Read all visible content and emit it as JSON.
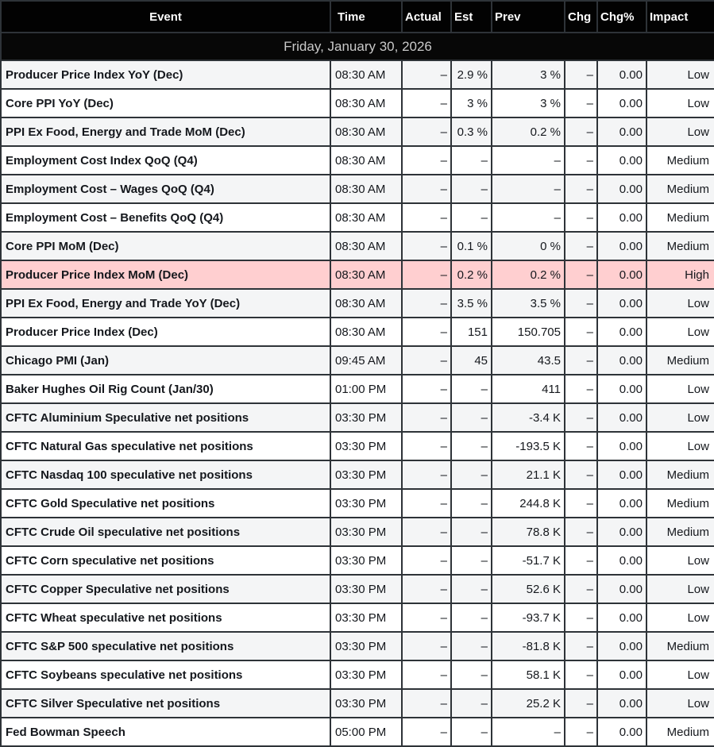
{
  "colors": {
    "header_bg": "#020202",
    "header_text": "#ffffff",
    "date_bg": "#070707",
    "date_text": "#c9c9c9",
    "row_white": "#ffffff",
    "row_stripe": "#f4f5f6",
    "row_highlight": "#ffcfd0",
    "border": "#2e3338",
    "text": "#15181d"
  },
  "table": {
    "columns": [
      "Event",
      "Time",
      "Actual",
      "Est",
      "Prev",
      "Chg",
      "Chg%",
      "Impact"
    ],
    "date_header": "Friday, January 30, 2026",
    "rows": [
      {
        "event": "Producer Price Index YoY (Dec)",
        "time": "08:30 AM",
        "actual": "–",
        "est": "2.9 %",
        "prev": "3 %",
        "chg": "–",
        "chg_pct": "0.00",
        "impact": "Low",
        "highlight": false
      },
      {
        "event": "Core PPI YoY (Dec)",
        "time": "08:30 AM",
        "actual": "–",
        "est": "3 %",
        "prev": "3 %",
        "chg": "–",
        "chg_pct": "0.00",
        "impact": "Low",
        "highlight": false
      },
      {
        "event": "PPI Ex Food, Energy and Trade MoM (Dec)",
        "time": "08:30 AM",
        "actual": "–",
        "est": "0.3 %",
        "prev": "0.2 %",
        "chg": "–",
        "chg_pct": "0.00",
        "impact": "Low",
        "highlight": false
      },
      {
        "event": "Employment Cost Index QoQ (Q4)",
        "time": "08:30 AM",
        "actual": "–",
        "est": "–",
        "prev": "–",
        "chg": "–",
        "chg_pct": "0.00",
        "impact": "Medium",
        "highlight": false
      },
      {
        "event": "Employment Cost – Wages QoQ (Q4)",
        "time": "08:30 AM",
        "actual": "–",
        "est": "–",
        "prev": "–",
        "chg": "–",
        "chg_pct": "0.00",
        "impact": "Medium",
        "highlight": false
      },
      {
        "event": "Employment Cost – Benefits QoQ (Q4)",
        "time": "08:30 AM",
        "actual": "–",
        "est": "–",
        "prev": "–",
        "chg": "–",
        "chg_pct": "0.00",
        "impact": "Medium",
        "highlight": false
      },
      {
        "event": "Core PPI MoM (Dec)",
        "time": "08:30 AM",
        "actual": "–",
        "est": "0.1 %",
        "prev": "0 %",
        "chg": "–",
        "chg_pct": "0.00",
        "impact": "Medium",
        "highlight": false
      },
      {
        "event": "Producer Price Index MoM (Dec)",
        "time": "08:30 AM",
        "actual": "–",
        "est": "0.2 %",
        "prev": "0.2 %",
        "chg": "–",
        "chg_pct": "0.00",
        "impact": "High",
        "highlight": true
      },
      {
        "event": "PPI Ex Food, Energy and Trade YoY (Dec)",
        "time": "08:30 AM",
        "actual": "–",
        "est": "3.5 %",
        "prev": "3.5 %",
        "chg": "–",
        "chg_pct": "0.00",
        "impact": "Low",
        "highlight": false
      },
      {
        "event": "Producer Price Index (Dec)",
        "time": "08:30 AM",
        "actual": "–",
        "est": "151",
        "prev": "150.705",
        "chg": "–",
        "chg_pct": "0.00",
        "impact": "Low",
        "highlight": false
      },
      {
        "event": "Chicago PMI (Jan)",
        "time": "09:45 AM",
        "actual": "–",
        "est": "45",
        "prev": "43.5",
        "chg": "–",
        "chg_pct": "0.00",
        "impact": "Medium",
        "highlight": false
      },
      {
        "event": "Baker Hughes Oil Rig Count (Jan/30)",
        "time": "01:00 PM",
        "actual": "–",
        "est": "–",
        "prev": "411",
        "chg": "–",
        "chg_pct": "0.00",
        "impact": "Low",
        "highlight": false
      },
      {
        "event": "CFTC Aluminium Speculative net positions",
        "time": "03:30 PM",
        "actual": "–",
        "est": "–",
        "prev": "-3.4 K",
        "chg": "–",
        "chg_pct": "0.00",
        "impact": "Low",
        "highlight": false
      },
      {
        "event": "CFTC Natural Gas speculative net positions",
        "time": "03:30 PM",
        "actual": "–",
        "est": "–",
        "prev": "-193.5 K",
        "chg": "–",
        "chg_pct": "0.00",
        "impact": "Low",
        "highlight": false
      },
      {
        "event": "CFTC Nasdaq 100 speculative net positions",
        "time": "03:30 PM",
        "actual": "–",
        "est": "–",
        "prev": "21.1 K",
        "chg": "–",
        "chg_pct": "0.00",
        "impact": "Medium",
        "highlight": false
      },
      {
        "event": "CFTC Gold Speculative net positions",
        "time": "03:30 PM",
        "actual": "–",
        "est": "–",
        "prev": "244.8 K",
        "chg": "–",
        "chg_pct": "0.00",
        "impact": "Medium",
        "highlight": false
      },
      {
        "event": "CFTC Crude Oil speculative net positions",
        "time": "03:30 PM",
        "actual": "–",
        "est": "–",
        "prev": "78.8 K",
        "chg": "–",
        "chg_pct": "0.00",
        "impact": "Medium",
        "highlight": false
      },
      {
        "event": "CFTC Corn speculative net positions",
        "time": "03:30 PM",
        "actual": "–",
        "est": "–",
        "prev": "-51.7 K",
        "chg": "–",
        "chg_pct": "0.00",
        "impact": "Low",
        "highlight": false
      },
      {
        "event": "CFTC Copper Speculative net positions",
        "time": "03:30 PM",
        "actual": "–",
        "est": "–",
        "prev": "52.6 K",
        "chg": "–",
        "chg_pct": "0.00",
        "impact": "Low",
        "highlight": false
      },
      {
        "event": "CFTC Wheat speculative net positions",
        "time": "03:30 PM",
        "actual": "–",
        "est": "–",
        "prev": "-93.7 K",
        "chg": "–",
        "chg_pct": "0.00",
        "impact": "Low",
        "highlight": false
      },
      {
        "event": "CFTC S&P 500 speculative net positions",
        "time": "03:30 PM",
        "actual": "–",
        "est": "–",
        "prev": "-81.8 K",
        "chg": "–",
        "chg_pct": "0.00",
        "impact": "Medium",
        "highlight": false
      },
      {
        "event": "CFTC Soybeans speculative net positions",
        "time": "03:30 PM",
        "actual": "–",
        "est": "–",
        "prev": "58.1 K",
        "chg": "–",
        "chg_pct": "0.00",
        "impact": "Low",
        "highlight": false
      },
      {
        "event": "CFTC Silver Speculative net positions",
        "time": "03:30 PM",
        "actual": "–",
        "est": "–",
        "prev": "25.2 K",
        "chg": "–",
        "chg_pct": "0.00",
        "impact": "Low",
        "highlight": false
      },
      {
        "event": "Fed Bowman Speech",
        "time": "05:00 PM",
        "actual": "–",
        "est": "–",
        "prev": "–",
        "chg": "–",
        "chg_pct": "0.00",
        "impact": "Medium",
        "highlight": false
      }
    ]
  }
}
